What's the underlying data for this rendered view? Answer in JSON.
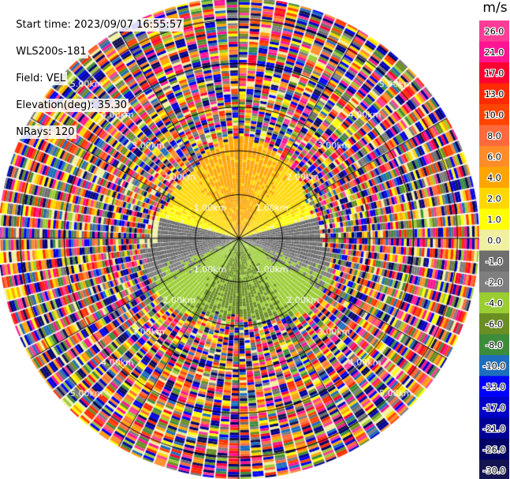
{
  "header": {
    "start_time": "Start time: 2023/09/07 16:55:57",
    "instrument": "WLS200s-181",
    "field": "Field: VEL",
    "elevation": "Elevation(deg): 35.30",
    "nrays": "NRays: 120"
  },
  "chart_data": {
    "type": "heatmap",
    "projection": "polar PPI",
    "field": "VEL",
    "unit": "m/s",
    "range_ring_labels": [
      "1.00km",
      "2.00km",
      "3.00km",
      "4.00km",
      "5.00km"
    ],
    "max_range_km": 5.5,
    "n_rays": 120,
    "colorbar": {
      "tick_labels": [
        "26.0",
        "21.0",
        "17.0",
        "13.0",
        "10.0",
        "8.0",
        "6.0",
        "4.0",
        "2.0",
        "1.0",
        "0.0",
        "-1.0",
        "-2.0",
        "-4.0",
        "-6.0",
        "-8.0",
        "-10.0",
        "-13.0",
        "-17.0",
        "-21.0",
        "-26.0",
        "-30.0"
      ],
      "colors": [
        "#ff3c96",
        "#ff1493",
        "#ff0033",
        "#ff2a00",
        "#ff4500",
        "#ff6a3c",
        "#ff8c28",
        "#ffa500",
        "#ffd700",
        "#ffff00",
        "#f0f0a0",
        "#6e6e6e",
        "#7f7f7f",
        "#9acd32",
        "#6b8e23",
        "#3c8c3c",
        "#1e6ebe",
        "#0000ff",
        "#0000c8",
        "#000096",
        "#000064",
        "#141450"
      ]
    },
    "pattern": {
      "near_north": "4.0 to 6.0 (orange/yellow)",
      "near_east_west_band": "-1.0 to 0.0 (gray)",
      "near_south": "-2.0 to -8.0 (green)",
      "far_field": "noise beyond ~2.3km"
    }
  }
}
